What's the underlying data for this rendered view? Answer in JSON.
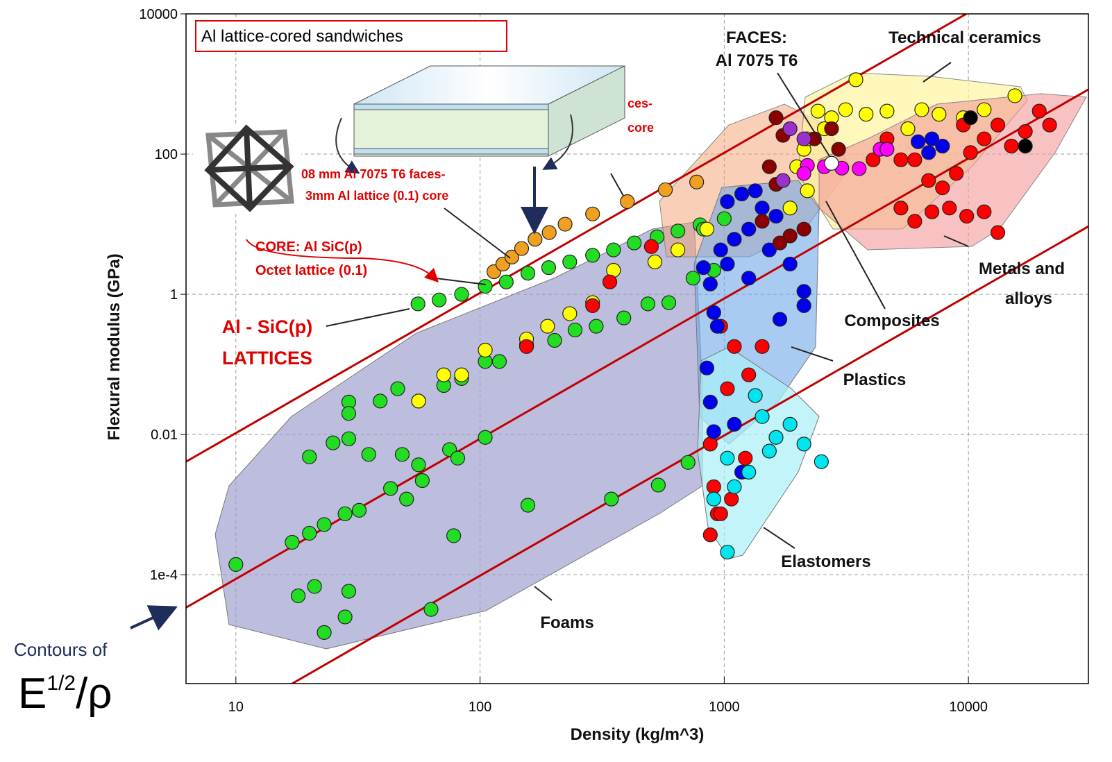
{
  "chart_data": {
    "type": "scatter",
    "x_label": "Density (kg/m^3)",
    "y_label": "Flexural modulus (GPa)",
    "xlog": true,
    "ylog": true,
    "grid": true,
    "xlim": [
      6.25,
      31000
    ],
    "ylim": [
      2.8e-06,
      10000
    ],
    "xticks": [
      10,
      100,
      1000,
      10000
    ],
    "yticks": [
      10000,
      100,
      1,
      0.01,
      {
        "value": 0.0001,
        "label": "1e-4"
      }
    ],
    "annotations": [
      "Al lattice-cored sandwiches",
      "FACES:",
      "Al 7075 T6",
      "Technical ceramics",
      "Metals and",
      "alloys",
      "Composites",
      "Plastics",
      "Elastomers",
      "Foams",
      "Al - SiC(p)",
      "LATTICES",
      "CORE:  Al SiC(p)",
      "Octet lattice (0.1)",
      "08 mm Al 7075 T6 faces-",
      "3mm Al lattice (0.1) core",
      "ces-",
      "core"
    ],
    "contour_note": {
      "text": "Contours of",
      "formula": [
        "E",
        "1/2",
        "/ρ"
      ]
    },
    "contour_color": "#c00000",
    "contours": [
      {
        "x": [
          6.25,
          9800
        ],
        "y": [
          0.0041,
          10000
        ]
      },
      {
        "x": [
          6.25,
          31000
        ],
        "y": [
          3.4e-05,
          836
        ]
      },
      {
        "x": [
          17,
          31000
        ],
        "y": [
          2.8e-06,
          9.3
        ]
      }
    ],
    "series": [
      {
        "color": "#f0a020",
        "x": [
          114,
          124,
          135,
          148,
          168,
          192,
          223,
          289,
          401,
          574,
          771
        ],
        "values": [
          2.1,
          2.7,
          3.4,
          4.5,
          6.1,
          7.6,
          10,
          14,
          21,
          31,
          40
        ]
      },
      {
        "color": "#22dd22",
        "x": [
          55.7,
          68,
          84,
          105,
          128,
          157,
          191,
          233,
          289,
          352,
          428,
          531,
          646,
          796
        ],
        "values": [
          0.73,
          0.83,
          1.0,
          1.3,
          1.5,
          2.0,
          2.4,
          2.9,
          3.6,
          4.3,
          5.4,
          6.6,
          8.0,
          9.8
        ]
      },
      {
        "color": "#22dd22",
        "x": [
          10,
          17,
          20,
          23,
          28,
          32,
          43,
          50,
          18,
          21,
          23,
          28,
          29,
          63,
          20,
          25,
          29,
          35,
          29,
          29,
          48,
          56,
          58,
          75,
          81,
          105,
          78,
          157,
          345,
          537,
          711,
          39,
          46,
          56,
          71,
          84,
          105,
          120,
          155,
          202,
          245,
          299,
          388,
          487,
          593,
          745,
          906,
          822,
          1000
        ],
        "values": [
          0.00014,
          0.00029,
          0.00039,
          0.00052,
          0.00074,
          0.00083,
          0.0017,
          0.0012,
          5e-05,
          6.8e-05,
          1.5e-05,
          2.5e-05,
          5.8e-05,
          3.2e-05,
          0.0048,
          0.0076,
          0.0087,
          0.0052,
          0.029,
          0.02,
          0.0052,
          0.0037,
          0.0022,
          0.0061,
          0.0046,
          0.0091,
          0.00036,
          0.00098,
          0.0012,
          0.0019,
          0.004,
          0.03,
          0.045,
          0.03,
          0.05,
          0.063,
          0.11,
          0.11,
          0.19,
          0.22,
          0.31,
          0.35,
          0.46,
          0.73,
          0.76,
          1.7,
          2.2,
          8.5,
          12
        ]
      },
      {
        "color": "#ffff00",
        "x": [
          56,
          71,
          84,
          105,
          155,
          189,
          233,
          289,
          352,
          520,
          646,
          849,
          3460,
          2420,
          2750,
          3140,
          3810,
          4640,
          5650,
          6440,
          7580,
          9530,
          11600,
          15500,
          2120,
          1980,
          2190,
          1860,
          2570,
          2190
        ],
        "values": [
          0.03,
          0.071,
          0.071,
          0.16,
          0.23,
          0.35,
          0.53,
          0.76,
          2.2,
          2.9,
          4.3,
          8.5,
          1150,
          410,
          330,
          430,
          370,
          410,
          230,
          430,
          370,
          330,
          430,
          680,
          117,
          66,
          30,
          17,
          230,
          165
        ]
      },
      {
        "color": "#ff0000",
        "x": [
          6030,
          6870,
          7830,
          8920,
          10200,
          11600,
          13200,
          15000,
          17100,
          19500,
          21500,
          5290,
          6030,
          7090,
          8360,
          9840,
          11600,
          13200,
          9530,
          5290,
          4640,
          4070,
          877,
          906,
          937,
          1070,
          1220,
          1030,
          1100,
          1260,
          967,
          1430,
          503,
          340,
          289,
          155,
          967,
          877
        ],
        "values": [
          83,
          42,
          33,
          53,
          105,
          165,
          260,
          130,
          210,
          410,
          260,
          17,
          11,
          15,
          17,
          13,
          15,
          7.6,
          260,
          83,
          165,
          83,
          0.0073,
          0.0018,
          0.00074,
          0.0012,
          0.0046,
          0.045,
          0.18,
          0.071,
          0.35,
          0.18,
          4.8,
          1.5,
          0.69,
          0.18,
          0.00074,
          0.00037
        ]
      },
      {
        "color": "#0000ee",
        "x": [
          822,
          877,
          967,
          1100,
          1260,
          1430,
          1630,
          1030,
          1180,
          1340,
          906,
          937,
          2120,
          2120,
          1690,
          1030,
          1260,
          1530,
          1860,
          849,
          877,
          906,
          1100,
          1180,
          6220,
          7090,
          7830,
          6870
        ],
        "values": [
          2.4,
          1.4,
          4.3,
          6.1,
          8.5,
          17,
          13,
          21,
          27,
          30,
          0.55,
          0.35,
          1.1,
          0.69,
          0.44,
          2.7,
          1.7,
          4.3,
          2.7,
          0.089,
          0.029,
          0.011,
          0.014,
          0.0029,
          150,
          165,
          130,
          105
        ]
      },
      {
        "color": "#00e5ee",
        "x": [
          1030,
          906,
          1100,
          1260,
          1530,
          1860,
          2120,
          2500,
          1430,
          1630,
          1340,
          1030
        ],
        "values": [
          0.00021,
          0.0012,
          0.0018,
          0.0029,
          0.0058,
          0.014,
          0.0073,
          0.0041,
          0.018,
          0.0091,
          0.036,
          0.0046
        ]
      },
      {
        "color": "#8b0000",
        "x": [
          1630,
          1740,
          1530,
          1630,
          1430,
          1860,
          2120,
          2750,
          2940,
          2340,
          1690
        ],
        "values": [
          330,
          185,
          66,
          37,
          11,
          6.8,
          8.5,
          230,
          117,
          165,
          5.4
        ]
      },
      {
        "color": "#ff00ff",
        "x": [
          2190,
          2570,
          3030,
          3570,
          4350,
          4640,
          2120
        ],
        "values": [
          69,
          66,
          63,
          62,
          117,
          117,
          53
        ]
      },
      {
        "color": "#9932cc",
        "x": [
          1740,
          1860,
          2120
        ],
        "values": [
          42,
          230,
          165
        ]
      },
      {
        "color": "#ffffff",
        "x": [
          2750
        ],
        "values": [
          74
        ]
      },
      {
        "color": "#000000",
        "x": [
          10200,
          17100
        ],
        "values": [
          330,
          130
        ]
      }
    ]
  }
}
